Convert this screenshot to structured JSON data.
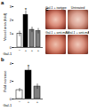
{
  "chart_data": [
    {
      "type": "bar",
      "title": "a",
      "ylabel": "Vessel area (fold)",
      "xlabel": "Gal-1",
      "categories": [
        "−",
        "+",
        "+",
        "+"
      ],
      "values": [
        1.0,
        2.4,
        1.3,
        1.2
      ],
      "errors": [
        0.2,
        0.3,
        0.2,
        0.2
      ],
      "colors": [
        "#ffffff",
        "#000000",
        "#808080",
        "#808080"
      ],
      "ylim": [
        0,
        3
      ],
      "yticks": [
        0,
        1,
        2,
        3
      ],
      "annotations": [
        {
          "text": "*",
          "x": 1,
          "y": 2.75
        }
      ]
    },
    {
      "type": "bar",
      "title": "b",
      "ylabel": "Fold increase",
      "xlabel": "Gal-1",
      "categories": [
        "−",
        "+",
        "+"
      ],
      "values": [
        1.0,
        3.2,
        1.4
      ],
      "errors": [
        0.2,
        0.4,
        0.3
      ],
      "colors": [
        "#ffffff",
        "#000000",
        "#808080"
      ],
      "ylim": [
        0,
        4
      ],
      "yticks": [
        0,
        2,
        4
      ],
      "annotations": [
        {
          "text": "*",
          "x": 1,
          "y": 3.65
        }
      ]
    }
  ],
  "images": {
    "title": "c",
    "labels": [
      "Gal-1 + isotype",
      "Untreated",
      "Gal-1 + anti-mAb",
      "Gal-1 + anti-mAb"
    ]
  }
}
